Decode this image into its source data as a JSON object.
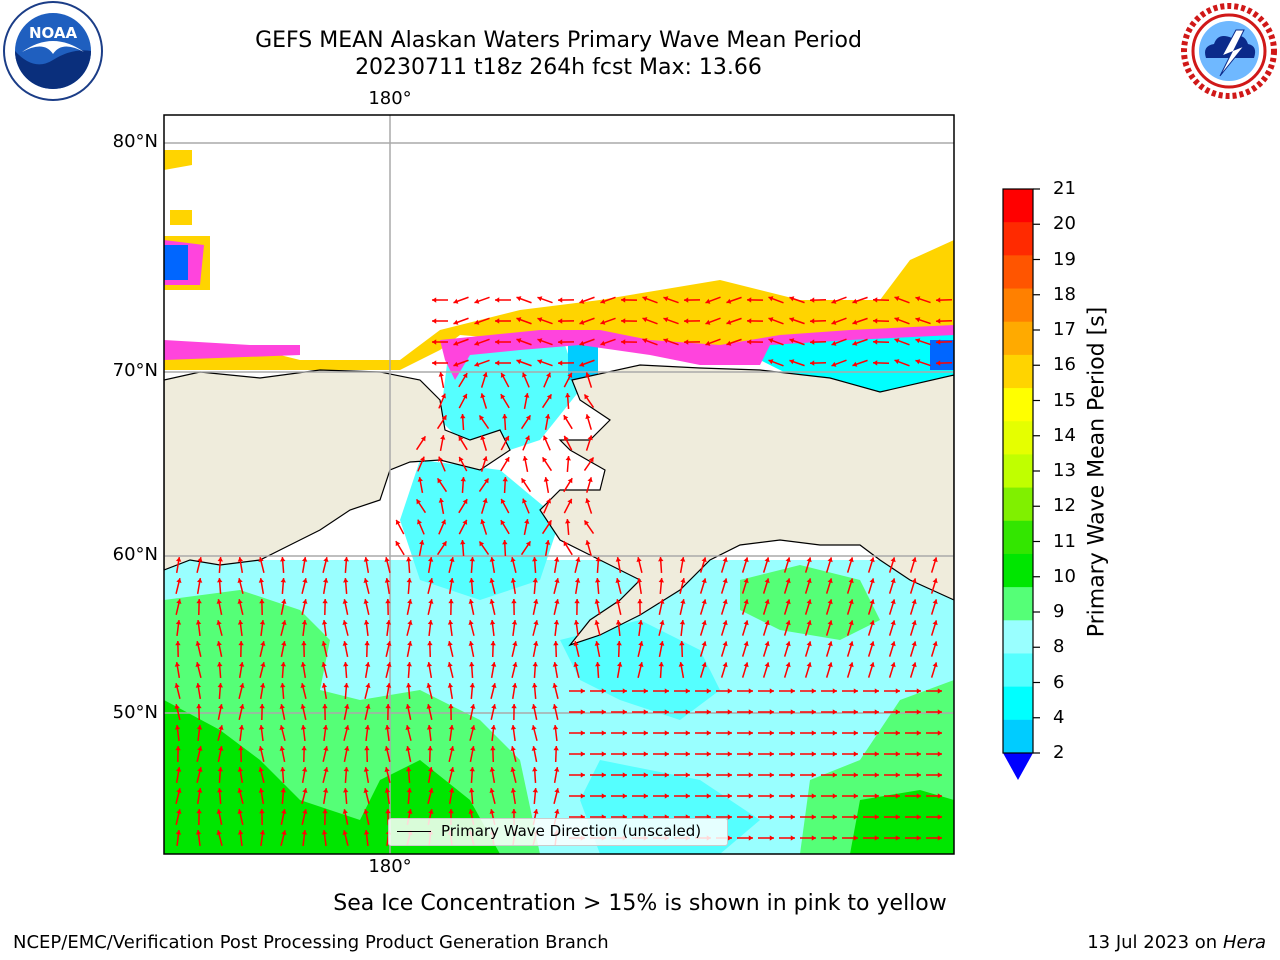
{
  "title": {
    "line1": "GEFS MEAN Alaskan Waters Primary Wave Mean Period",
    "line2": "20230711 t18z 264h fcst   Max: 13.66"
  },
  "logos": {
    "left": {
      "text": "NOAA",
      "icon": "noaa-logo-icon"
    },
    "right": {
      "text": "NATIONAL WEATHER SERVICE",
      "icon": "nws-logo-icon"
    }
  },
  "map": {
    "lat_labels": [
      "80°N",
      "70°N",
      "60°N",
      "50°N"
    ],
    "lon_label_top": "180°",
    "lon_label_bottom": "180°",
    "legend_label": "Primary Wave Direction (unscaled)",
    "arrow_color": "#ff0000",
    "land_color": "#efecdc",
    "ice_note": "Sea Ice Concentration > 15% is shown in pink to yellow"
  },
  "colorbar": {
    "label": "Primary Wave Mean Period [s]",
    "ticks": [
      "21",
      "20",
      "19",
      "18",
      "17",
      "16",
      "15",
      "14",
      "13",
      "12",
      "11",
      "10",
      "9",
      "8",
      "6",
      "4",
      "2"
    ],
    "colors_top_to_bottom": [
      "#ff0000",
      "#ff2a00",
      "#ff5500",
      "#ff8000",
      "#ffaa00",
      "#ffd400",
      "#ffff00",
      "#e5ff00",
      "#c0ff00",
      "#80f000",
      "#33e600",
      "#00e600",
      "#55ff77",
      "#99ffff",
      "#55ffff",
      "#00ffff",
      "#00ccff",
      "#0066ff",
      "#0000ff"
    ]
  },
  "footer": {
    "left": "NCEP/EMC/Verification Post Processing Product Generation Branch",
    "right_date": "13 Jul 2023 on ",
    "right_host": "Hera"
  }
}
